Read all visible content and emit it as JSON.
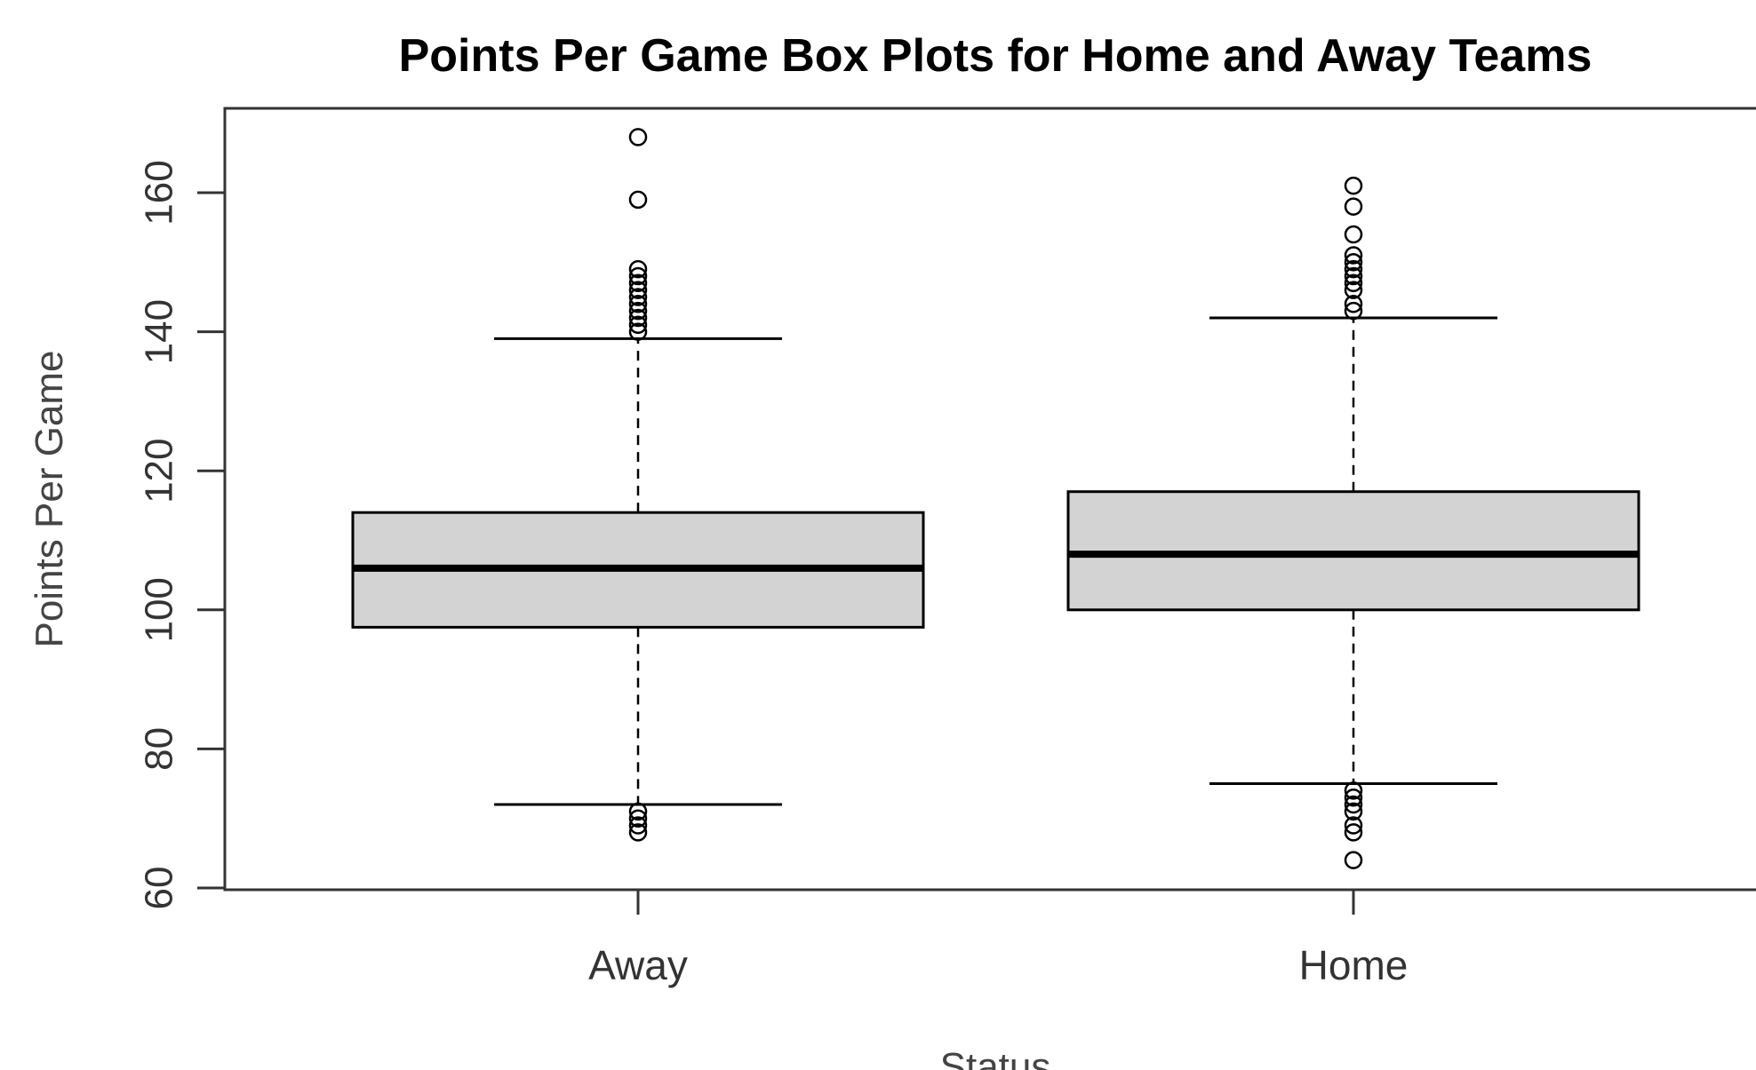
{
  "chart_data": {
    "type": "boxplot",
    "title": "Points Per Game Box Plots for Home and Away Teams",
    "xlabel": "Status",
    "ylabel": "Points Per Game",
    "ylim": [
      60,
      160
    ],
    "yticks": [
      60,
      80,
      100,
      120,
      140,
      160
    ],
    "grid": false,
    "colors": {
      "box_fill": "#d3d3d3",
      "stroke": "#000000"
    },
    "categories": [
      "Away",
      "Home"
    ],
    "boxes": [
      {
        "category": "Away",
        "whisker_low": 72,
        "q1": 97.5,
        "median": 106,
        "q3": 114,
        "whisker_high": 139,
        "outliers": [
          168,
          159,
          149,
          148,
          147,
          146,
          145,
          144,
          143,
          142,
          141,
          140,
          71,
          70,
          69,
          68
        ]
      },
      {
        "category": "Home",
        "whisker_low": 75,
        "q1": 100,
        "median": 108,
        "q3": 117,
        "whisker_high": 142,
        "outliers": [
          161,
          158,
          154,
          151,
          150,
          149,
          148,
          147,
          146,
          144,
          143,
          74,
          73,
          72,
          71,
          69,
          68,
          64
        ]
      }
    ]
  }
}
